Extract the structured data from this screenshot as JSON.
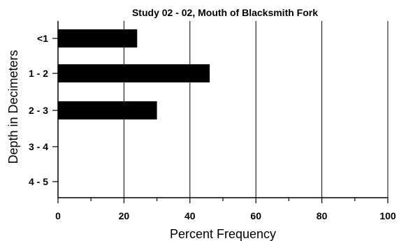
{
  "chart_data": {
    "type": "bar",
    "orientation": "horizontal",
    "title": "Study 02 - 02, Mouth of Blacksmith Fork",
    "xlabel": "Percent Frequency",
    "ylabel": "Depth in Decimeters",
    "categories": [
      "<1",
      "1 - 2",
      "2 - 3",
      "3 - 4",
      "4 - 5"
    ],
    "values": [
      24,
      46,
      30,
      0,
      0
    ],
    "xlim": [
      0,
      100
    ],
    "xticks": [
      0,
      20,
      40,
      60,
      80,
      100
    ],
    "minor_xticks": [
      10,
      30,
      50,
      70,
      90
    ],
    "grid": "vertical major gridlines",
    "legend": "none",
    "bar_color": "#000000"
  }
}
